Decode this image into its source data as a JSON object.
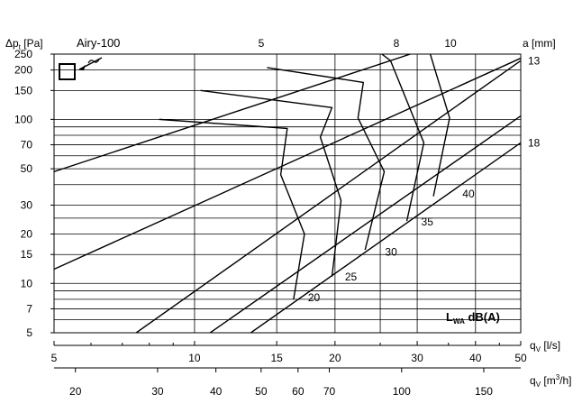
{
  "chart_data": {
    "type": "line",
    "product": "Airy-100",
    "y_label_main": "Δp",
    "y_label_sub": "t",
    "y_label_unit": "[Pa]",
    "a_label": "a [mm]",
    "lwa_main": "L",
    "lwa_sub": "WA",
    "lwa_unit": "dB(A)",
    "x_label_main": "q",
    "x_label_sub": "V",
    "x_label_unit": "[l/s]",
    "x2_label_main": "q",
    "x2_label_sub": "V",
    "x2_label_unit": "[m",
    "x2_label_sup": "3",
    "x2_label_end": "/h]",
    "y_scale": "log",
    "x_scale": "log",
    "xlim": [
      5,
      50
    ],
    "ylim": [
      5,
      250
    ],
    "y_ticks": [
      5,
      7,
      10,
      15,
      20,
      30,
      50,
      70,
      100,
      150,
      200,
      250
    ],
    "y_tick_labels": [
      "5",
      "7",
      "10",
      "15",
      "20",
      "30",
      "50",
      "70",
      "100",
      "150",
      "200",
      "250"
    ],
    "y_gridlines": [
      5,
      6,
      7,
      8,
      9,
      10,
      15,
      20,
      25,
      30,
      40,
      50,
      60,
      70,
      80,
      90,
      100,
      150,
      200,
      250
    ],
    "x_ticks_ls": [
      5,
      10,
      15,
      20,
      30,
      40,
      50
    ],
    "x_tick_labels_ls": [
      "5",
      "10",
      "15",
      "20",
      "30",
      "40",
      "50"
    ],
    "x_minor_ls": [
      6,
      7,
      8,
      9,
      25,
      35,
      45
    ],
    "x_gridlines": [
      10,
      15,
      20,
      25,
      30,
      40
    ],
    "x_ticks_m3h": [
      20,
      30,
      40,
      50,
      60,
      70,
      100,
      150
    ],
    "x_tick_labels_m3h": [
      "20",
      "30",
      "40",
      "50",
      "60",
      "70",
      "100",
      "150"
    ],
    "damper_lines": [
      {
        "label": "",
        "points": [
          [
            5,
            48
          ],
          [
            29,
            250
          ]
        ]
      },
      {
        "label": "",
        "points": [
          [
            5,
            12.2
          ],
          [
            50,
            236
          ]
        ]
      },
      {
        "label": "13",
        "points": [
          [
            7.5,
            5
          ],
          [
            50,
            228
          ]
        ]
      },
      {
        "label": "",
        "points": [
          [
            10.8,
            5
          ],
          [
            50,
            105
          ]
        ]
      },
      {
        "label": "18",
        "points": [
          [
            13.2,
            5
          ],
          [
            50,
            72
          ]
        ]
      }
    ],
    "a_openings": [
      "5",
      "8",
      "10"
    ],
    "sound_contours": [
      {
        "label": "20",
        "points": [
          [
            16.3,
            8
          ],
          [
            17.2,
            20
          ],
          [
            15.3,
            46
          ],
          [
            15.8,
            88
          ],
          [
            8.4,
            100
          ]
        ]
      },
      {
        "label": "25",
        "points": [
          [
            19.7,
            11
          ],
          [
            20.6,
            32
          ],
          [
            18.6,
            78
          ],
          [
            19.7,
            118
          ],
          [
            10.3,
            150
          ]
        ]
      },
      {
        "label": "30",
        "points": [
          [
            23.2,
            16
          ],
          [
            25.5,
            48
          ],
          [
            22.4,
            102
          ],
          [
            23.0,
            168
          ],
          [
            14.3,
            207
          ]
        ]
      },
      {
        "label": "35",
        "points": [
          [
            28.5,
            24
          ],
          [
            31.0,
            72
          ],
          [
            26.3,
            228
          ],
          [
            25.2,
            250
          ]
        ]
      },
      {
        "label": "40",
        "points": [
          [
            32.5,
            34
          ],
          [
            35.2,
            102
          ],
          [
            32.0,
            250
          ]
        ]
      }
    ],
    "lwa_label_positions": [
      [
        17.5,
        7.8
      ],
      [
        21.0,
        10.4
      ],
      [
        25.6,
        14.8
      ],
      [
        30.6,
        22.5
      ],
      [
        37.5,
        33.5
      ]
    ]
  }
}
